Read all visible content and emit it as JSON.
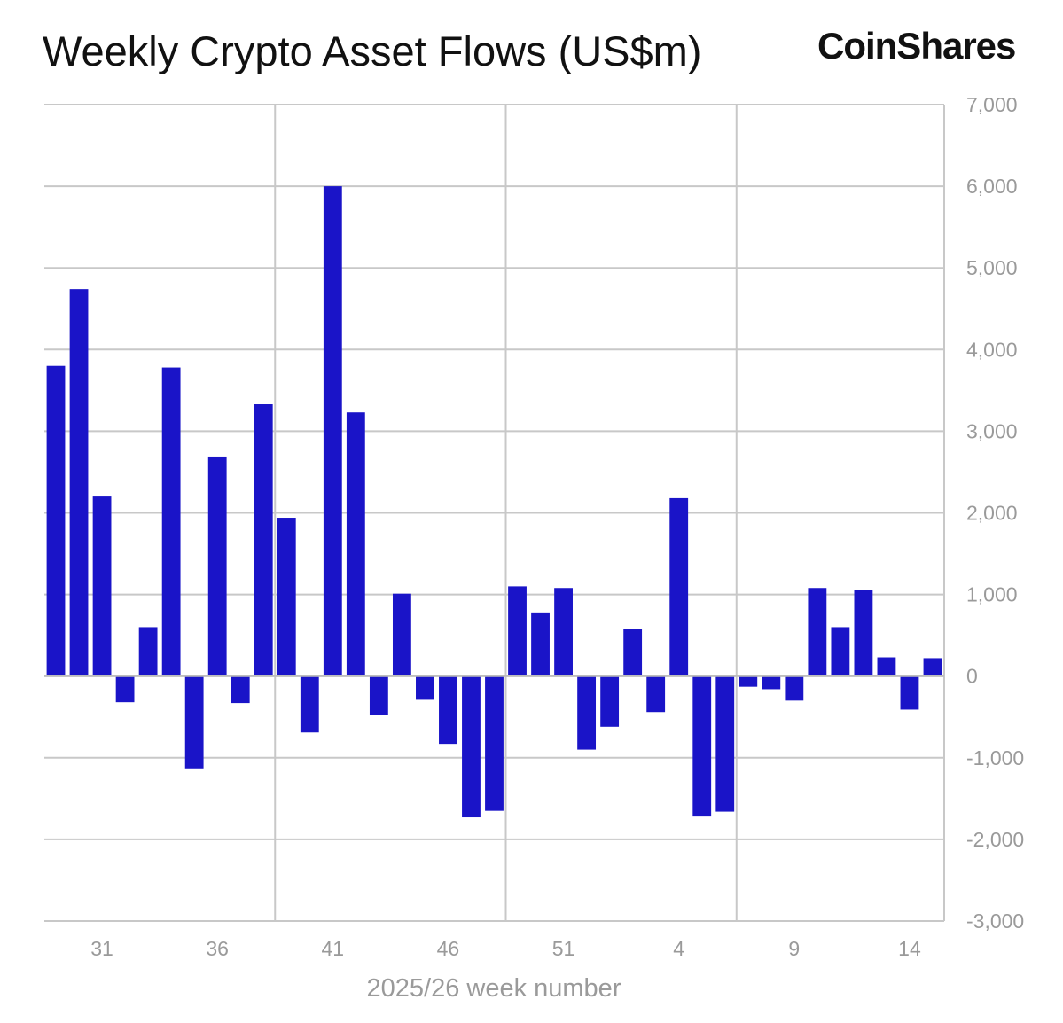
{
  "header": {
    "title": "Weekly Crypto Asset Flows (US$m)",
    "brand": "CoinShares"
  },
  "chart_data": {
    "type": "bar",
    "title": "Weekly Crypto Asset Flows (US$m)",
    "xlabel": "2025/26 week number",
    "ylabel": "",
    "ylim": [
      -3000,
      7000
    ],
    "y_ticks": [
      7000,
      6000,
      5000,
      4000,
      3000,
      2000,
      1000,
      0,
      -1000,
      -2000,
      -3000
    ],
    "y_tick_labels": [
      "7,000",
      "6,000",
      "5,000",
      "4,000",
      "3,000",
      "2,000",
      "1,000",
      "0",
      "-1,000",
      "-2,000",
      "-3,000"
    ],
    "x_tick_labels": [
      "31",
      "36",
      "41",
      "46",
      "51",
      "4",
      "9",
      "14"
    ],
    "grid": true,
    "y_axis_position": "right",
    "bar_color": "#1a14c8",
    "categories": [
      "29",
      "30",
      "31",
      "32",
      "33",
      "34",
      "35",
      "36",
      "37",
      "38",
      "39",
      "40",
      "41",
      "42",
      "43",
      "44",
      "45",
      "46",
      "47",
      "48",
      "49",
      "50",
      "51",
      "52",
      "1",
      "2",
      "3",
      "4",
      "5",
      "6",
      "7",
      "8",
      "9",
      "10",
      "11",
      "12",
      "13",
      "14",
      "15"
    ],
    "values": [
      3800,
      4740,
      2200,
      -320,
      600,
      3780,
      -1130,
      2690,
      -330,
      3330,
      1940,
      -690,
      6000,
      3230,
      -480,
      1010,
      -290,
      -830,
      -1730,
      -1650,
      1100,
      780,
      1080,
      -900,
      -620,
      580,
      -440,
      2180,
      -1720,
      -1660,
      -130,
      -160,
      -300,
      1080,
      600,
      1060,
      230,
      -410,
      220
    ]
  }
}
